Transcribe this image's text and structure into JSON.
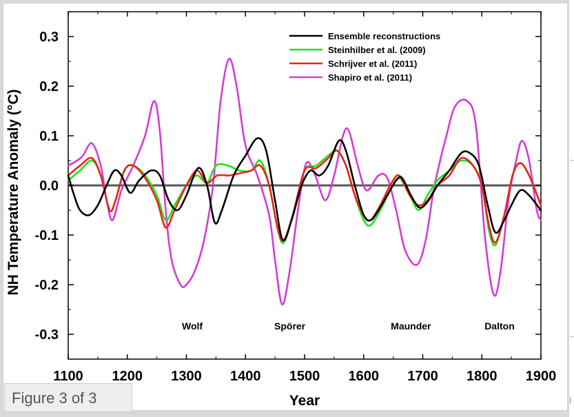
{
  "caption": "Figure 3 of 3",
  "edge_glyph": "i",
  "colors": {
    "black": "#000000",
    "green": "#22e01a",
    "red": "#e8241a",
    "magenta": "#d63ad6",
    "zero_line": "#555555"
  },
  "chart_data": {
    "type": "line",
    "xlabel": "Year",
    "ylabel": "NH Temperature Anomaly  (°C)",
    "xlim": [
      1100,
      1900
    ],
    "ylim": [
      -0.35,
      0.35
    ],
    "xticks": [
      "1100",
      "1200",
      "1300",
      "1400",
      "1500",
      "1600",
      "1700",
      "1800",
      "1900"
    ],
    "yticks": [
      "0.3",
      "0.2",
      "0.1",
      "0.0",
      "-0.1",
      "-0.2",
      "-0.3"
    ],
    "grid": false,
    "legend_position": "top-right",
    "annotations": [
      {
        "text": "Wolf",
        "x": 1310,
        "y": -0.29
      },
      {
        "text": "Spörer",
        "x": 1475,
        "y": -0.29
      },
      {
        "text": "Maunder",
        "x": 1680,
        "y": -0.29
      },
      {
        "text": "Dalton",
        "x": 1830,
        "y": -0.29
      }
    ],
    "series": [
      {
        "name": "Ensemble reconstructions",
        "color": "#000000",
        "points": [
          [
            1100,
            0.02
          ],
          [
            1110,
            -0.02
          ],
          [
            1120,
            -0.05
          ],
          [
            1135,
            -0.06
          ],
          [
            1150,
            -0.04
          ],
          [
            1165,
            0.0
          ],
          [
            1178,
            0.03
          ],
          [
            1190,
            0.02
          ],
          [
            1205,
            -0.015
          ],
          [
            1220,
            0.01
          ],
          [
            1240,
            0.03
          ],
          [
            1255,
            0.02
          ],
          [
            1270,
            -0.03
          ],
          [
            1285,
            -0.05
          ],
          [
            1300,
            -0.02
          ],
          [
            1320,
            0.035
          ],
          [
            1335,
            0.0
          ],
          [
            1348,
            -0.075
          ],
          [
            1360,
            -0.05
          ],
          [
            1380,
            0.02
          ],
          [
            1400,
            0.06
          ],
          [
            1420,
            0.095
          ],
          [
            1435,
            0.07
          ],
          [
            1450,
            -0.03
          ],
          [
            1463,
            -0.11
          ],
          [
            1478,
            -0.07
          ],
          [
            1495,
            0.0
          ],
          [
            1510,
            0.03
          ],
          [
            1525,
            0.02
          ],
          [
            1540,
            0.04
          ],
          [
            1558,
            0.09
          ],
          [
            1570,
            0.07
          ],
          [
            1585,
            0.0
          ],
          [
            1600,
            -0.06
          ],
          [
            1612,
            -0.07
          ],
          [
            1625,
            -0.05
          ],
          [
            1640,
            -0.02
          ],
          [
            1655,
            0.01
          ],
          [
            1665,
            0.015
          ],
          [
            1680,
            -0.02
          ],
          [
            1695,
            -0.045
          ],
          [
            1710,
            -0.03
          ],
          [
            1725,
            0.0
          ],
          [
            1745,
            0.03
          ],
          [
            1765,
            0.065
          ],
          [
            1780,
            0.065
          ],
          [
            1795,
            0.04
          ],
          [
            1810,
            -0.04
          ],
          [
            1823,
            -0.095
          ],
          [
            1838,
            -0.07
          ],
          [
            1850,
            -0.04
          ],
          [
            1865,
            -0.01
          ],
          [
            1880,
            -0.02
          ],
          [
            1900,
            -0.05
          ]
        ]
      },
      {
        "name": "Steinhilber et al. (2009)",
        "color": "#22e01a",
        "points": [
          [
            1100,
            0.01
          ],
          [
            1120,
            0.03
          ],
          [
            1140,
            0.05
          ],
          [
            1155,
            0.02
          ],
          [
            1170,
            -0.05
          ],
          [
            1180,
            -0.03
          ],
          [
            1195,
            0.03
          ],
          [
            1210,
            0.04
          ],
          [
            1230,
            0.02
          ],
          [
            1250,
            -0.02
          ],
          [
            1265,
            -0.07
          ],
          [
            1280,
            -0.04
          ],
          [
            1300,
            0.0
          ],
          [
            1318,
            0.02
          ],
          [
            1335,
            0.005
          ],
          [
            1350,
            0.04
          ],
          [
            1370,
            0.04
          ],
          [
            1390,
            0.03
          ],
          [
            1410,
            0.03
          ],
          [
            1425,
            0.05
          ],
          [
            1440,
            0.0
          ],
          [
            1455,
            -0.09
          ],
          [
            1465,
            -0.115
          ],
          [
            1480,
            -0.06
          ],
          [
            1500,
            0.03
          ],
          [
            1520,
            0.04
          ],
          [
            1540,
            0.06
          ],
          [
            1555,
            0.07
          ],
          [
            1570,
            0.04
          ],
          [
            1585,
            -0.02
          ],
          [
            1600,
            -0.07
          ],
          [
            1612,
            -0.08
          ],
          [
            1628,
            -0.05
          ],
          [
            1645,
            -0.01
          ],
          [
            1660,
            0.015
          ],
          [
            1678,
            -0.02
          ],
          [
            1693,
            -0.05
          ],
          [
            1708,
            -0.02
          ],
          [
            1725,
            0.01
          ],
          [
            1745,
            0.03
          ],
          [
            1765,
            0.05
          ],
          [
            1785,
            0.04
          ],
          [
            1800,
            0.0
          ],
          [
            1812,
            -0.09
          ],
          [
            1823,
            -0.12
          ],
          [
            1838,
            -0.06
          ],
          [
            1852,
            0.02
          ],
          [
            1865,
            0.045
          ],
          [
            1880,
            0.02
          ],
          [
            1900,
            -0.04
          ]
        ]
      },
      {
        "name": "Schrijver et al. (2011)",
        "color": "#e8241a",
        "points": [
          [
            1100,
            0.02
          ],
          [
            1120,
            0.04
          ],
          [
            1140,
            0.055
          ],
          [
            1155,
            0.02
          ],
          [
            1170,
            -0.05
          ],
          [
            1180,
            -0.03
          ],
          [
            1195,
            0.03
          ],
          [
            1210,
            0.04
          ],
          [
            1230,
            0.015
          ],
          [
            1250,
            -0.03
          ],
          [
            1265,
            -0.085
          ],
          [
            1280,
            -0.05
          ],
          [
            1300,
            0.0
          ],
          [
            1318,
            0.03
          ],
          [
            1335,
            0.005
          ],
          [
            1352,
            0.02
          ],
          [
            1372,
            0.02
          ],
          [
            1392,
            0.025
          ],
          [
            1410,
            0.03
          ],
          [
            1425,
            0.04
          ],
          [
            1440,
            0.0
          ],
          [
            1455,
            -0.09
          ],
          [
            1465,
            -0.11
          ],
          [
            1480,
            -0.06
          ],
          [
            1500,
            0.03
          ],
          [
            1520,
            0.035
          ],
          [
            1540,
            0.055
          ],
          [
            1555,
            0.07
          ],
          [
            1570,
            0.04
          ],
          [
            1585,
            -0.02
          ],
          [
            1600,
            -0.06
          ],
          [
            1612,
            -0.07
          ],
          [
            1628,
            -0.04
          ],
          [
            1645,
            0.0
          ],
          [
            1660,
            0.02
          ],
          [
            1678,
            -0.02
          ],
          [
            1693,
            -0.04
          ],
          [
            1708,
            -0.03
          ],
          [
            1725,
            0.0
          ],
          [
            1745,
            0.02
          ],
          [
            1765,
            0.055
          ],
          [
            1785,
            0.04
          ],
          [
            1800,
            0.0
          ],
          [
            1812,
            -0.08
          ],
          [
            1823,
            -0.115
          ],
          [
            1838,
            -0.06
          ],
          [
            1852,
            0.02
          ],
          [
            1865,
            0.045
          ],
          [
            1880,
            0.02
          ],
          [
            1900,
            -0.04
          ]
        ]
      },
      {
        "name": "Shapiro et al. (2011)",
        "color": "#d63ad6",
        "points": [
          [
            1100,
            0.04
          ],
          [
            1115,
            0.05
          ],
          [
            1125,
            0.06
          ],
          [
            1140,
            0.085
          ],
          [
            1155,
            0.04
          ],
          [
            1165,
            -0.03
          ],
          [
            1175,
            -0.07
          ],
          [
            1190,
            -0.01
          ],
          [
            1210,
            0.04
          ],
          [
            1230,
            0.1
          ],
          [
            1245,
            0.17
          ],
          [
            1255,
            0.11
          ],
          [
            1265,
            -0.05
          ],
          [
            1275,
            -0.15
          ],
          [
            1290,
            -0.2
          ],
          [
            1300,
            -0.2
          ],
          [
            1315,
            -0.17
          ],
          [
            1330,
            -0.11
          ],
          [
            1345,
            0.0
          ],
          [
            1358,
            0.17
          ],
          [
            1372,
            0.255
          ],
          [
            1385,
            0.2
          ],
          [
            1400,
            0.08
          ],
          [
            1420,
            0.02
          ],
          [
            1440,
            -0.06
          ],
          [
            1450,
            -0.15
          ],
          [
            1462,
            -0.24
          ],
          [
            1475,
            -0.17
          ],
          [
            1490,
            -0.04
          ],
          [
            1503,
            0.045
          ],
          [
            1518,
            0.02
          ],
          [
            1535,
            -0.03
          ],
          [
            1550,
            0.02
          ],
          [
            1565,
            0.1
          ],
          [
            1575,
            0.11
          ],
          [
            1590,
            0.04
          ],
          [
            1605,
            -0.01
          ],
          [
            1625,
            0.02
          ],
          [
            1640,
            0.015
          ],
          [
            1655,
            -0.05
          ],
          [
            1670,
            -0.13
          ],
          [
            1690,
            -0.16
          ],
          [
            1705,
            -0.11
          ],
          [
            1720,
            0.0
          ],
          [
            1740,
            0.1
          ],
          [
            1755,
            0.16
          ],
          [
            1775,
            0.17
          ],
          [
            1790,
            0.12
          ],
          [
            1805,
            -0.1
          ],
          [
            1820,
            -0.22
          ],
          [
            1832,
            -0.17
          ],
          [
            1845,
            -0.03
          ],
          [
            1858,
            0.05
          ],
          [
            1868,
            0.09
          ],
          [
            1880,
            0.05
          ],
          [
            1893,
            -0.05
          ],
          [
            1900,
            -0.07
          ]
        ]
      }
    ]
  }
}
